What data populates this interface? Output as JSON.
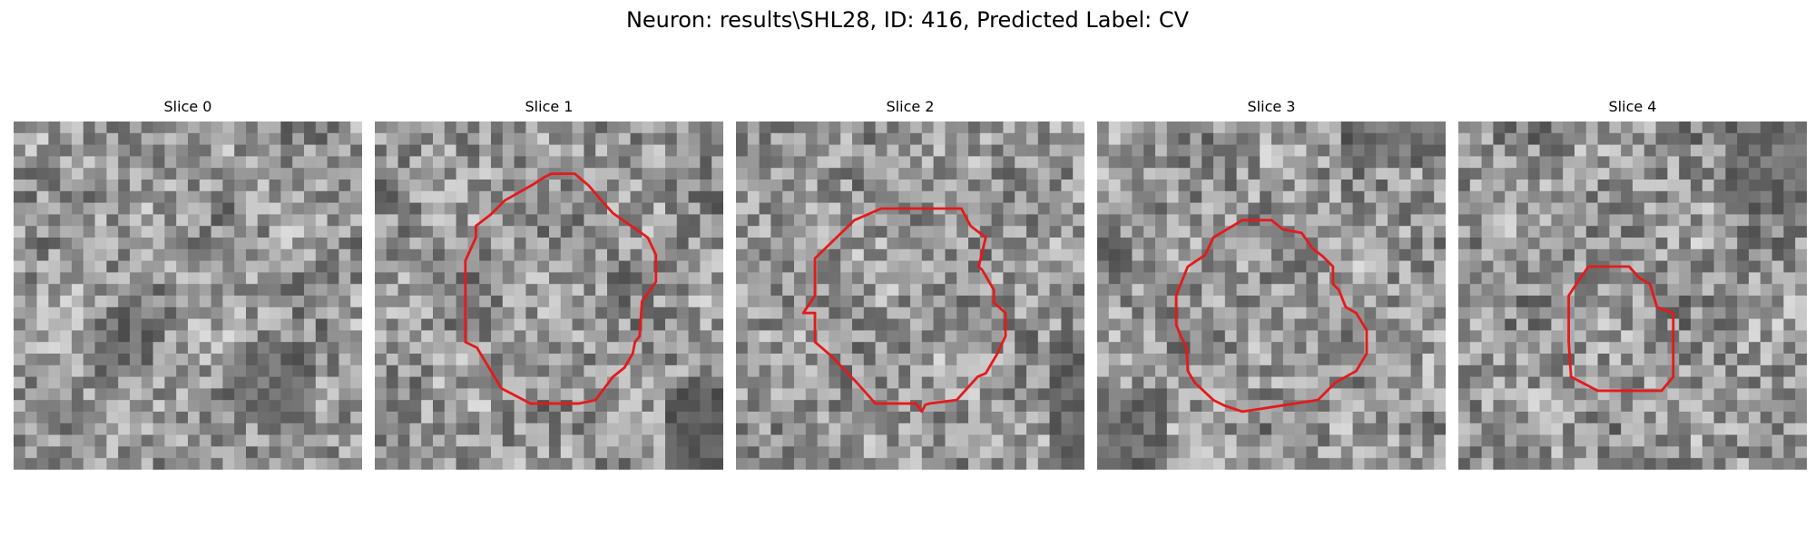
{
  "figure": {
    "title": "Neuron: results\\SHL28, ID: 416, Predicted Label: CV"
  },
  "panels": [
    {
      "title": "Slice 0",
      "has_outline": false,
      "seed": 11
    },
    {
      "title": "Slice 1",
      "has_outline": true,
      "seed": 23
    },
    {
      "title": "Slice 2",
      "has_outline": true,
      "seed": 37
    },
    {
      "title": "Slice 3",
      "has_outline": true,
      "seed": 51
    },
    {
      "title": "Slice 4",
      "has_outline": true,
      "seed": 67
    }
  ],
  "colors": {
    "outline": "#e41a1c",
    "background": "#ffffff"
  }
}
